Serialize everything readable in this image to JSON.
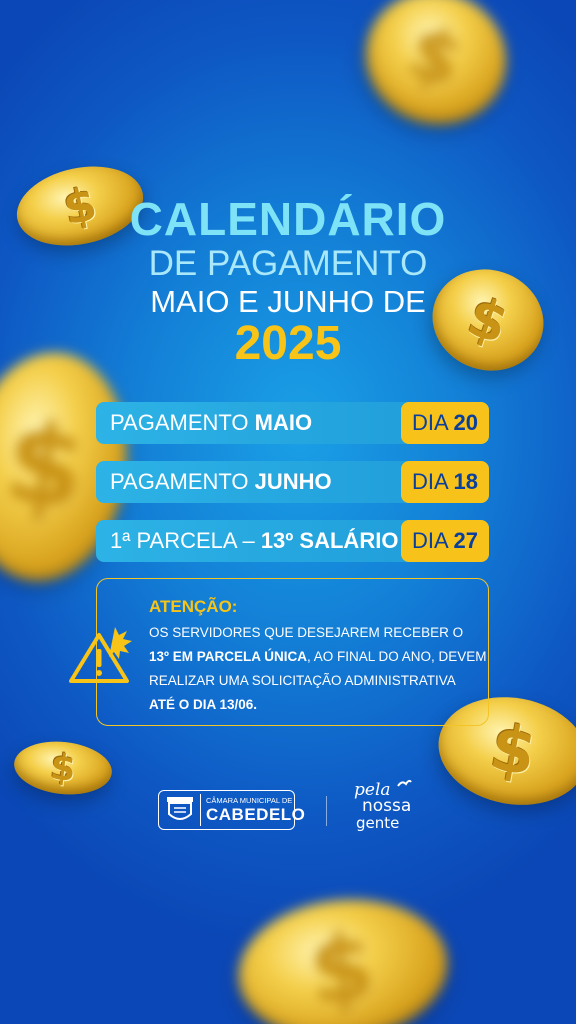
{
  "title": {
    "line1": "CALENDÁRIO",
    "line2": "DE PAGAMENTO",
    "line3": "MAIO E JUNHO DE",
    "year": "2025"
  },
  "payments": [
    {
      "label_prefix": "PAGAMENTO ",
      "label_bold": "MAIO",
      "day_prefix": "DIA ",
      "day_value": "20"
    },
    {
      "label_prefix": "PAGAMENTO ",
      "label_bold": "JUNHO",
      "day_prefix": "DIA ",
      "day_value": "18"
    },
    {
      "label_prefix": "1ª PARCELA – ",
      "label_bold": "13º SALÁRIO",
      "day_prefix": "DIA ",
      "day_value": "27"
    }
  ],
  "alert": {
    "heading": "ATENÇÃO:",
    "line1": "OS SERVIDORES QUE DESEJAREM RECEBER O",
    "line2_bold": "13º EM PARCELA ÚNICA",
    "line2_rest": ", AO FINAL DO ANO, DEVEM",
    "line3": "REALIZAR UMA SOLICITAÇÃO ADMINISTRATIVA",
    "line4_bold": "ATÉ O DIA 13/06.",
    "icon": "warning-icon"
  },
  "footer": {
    "org_small": "CÂMARA MUNICIPAL DE",
    "org_big": "CABEDELO",
    "slogan_1": "pela",
    "slogan_2": "nossa",
    "slogan_3": "gente"
  },
  "colors": {
    "background": "#137fd6",
    "accent_yellow": "#f7c417",
    "title_cyan": "#7fe3f7",
    "row_blue": "#2db3e6"
  }
}
